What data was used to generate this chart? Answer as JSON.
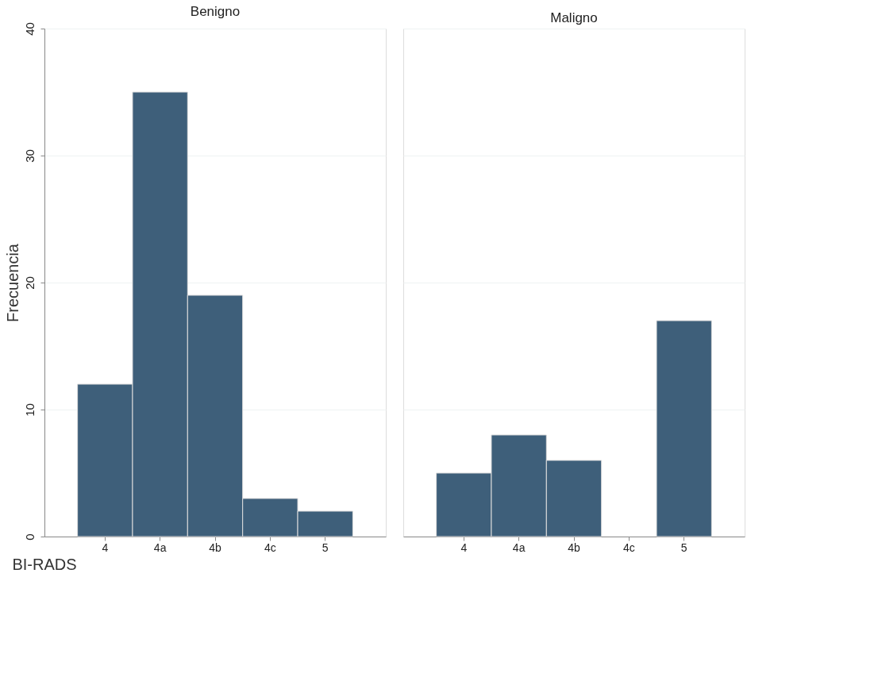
{
  "chart_data": [
    {
      "type": "bar",
      "title": "Benigno",
      "ylabel": "Frecuencia",
      "xlabel": "BI-RADS",
      "categories": [
        "4",
        "4a",
        "4b",
        "4c",
        "5"
      ],
      "series": [
        {
          "color": "#3e5f7a",
          "values": [
            12,
            35,
            19,
            3,
            2
          ]
        }
      ],
      "ylim": [
        0,
        40
      ],
      "yticks": [
        0,
        10,
        20,
        30,
        40
      ],
      "grid": "y"
    },
    {
      "type": "bar",
      "title": "Maligno",
      "categories": [
        "4",
        "4a",
        "4b",
        "4c",
        "5"
      ],
      "series": [
        {
          "color": "#3e5f7a",
          "values": [
            5,
            8,
            6,
            0,
            17
          ]
        }
      ],
      "ylim": [
        0,
        40
      ],
      "yticks": [
        0,
        10,
        20,
        30,
        40
      ],
      "grid": "y",
      "tick_labels": "x"
    }
  ]
}
